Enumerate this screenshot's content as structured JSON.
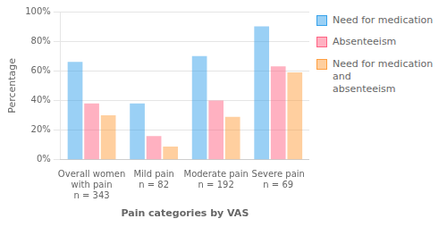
{
  "chart_data": {
    "type": "bar",
    "categories": [
      "Overall women\nwith pain\nn = 343",
      "Mild pain\nn = 82",
      "Moderate pain\nn = 192",
      "Severe pain\nn = 69"
    ],
    "series": [
      {
        "name": "Need for medication",
        "values": [
          66,
          38,
          70,
          90
        ]
      },
      {
        "name": "Absenteeism",
        "values": [
          38,
          16,
          40,
          63
        ]
      },
      {
        "name": "Need for medication and\nabsenteeism",
        "values": [
          30,
          9,
          29,
          59
        ]
      }
    ],
    "xlabel": "Pain categories by VAS",
    "ylabel": "Percentage",
    "ylim": [
      0,
      100
    ],
    "yticks": [
      {
        "value": 0,
        "label": "0%"
      },
      {
        "value": 20,
        "label": "20%"
      },
      {
        "value": 40,
        "label": "40%"
      },
      {
        "value": 60,
        "label": "60%"
      },
      {
        "value": 80,
        "label": "80%"
      },
      {
        "value": 100,
        "label": "100%"
      }
    ],
    "grid": true,
    "legend": "right"
  }
}
